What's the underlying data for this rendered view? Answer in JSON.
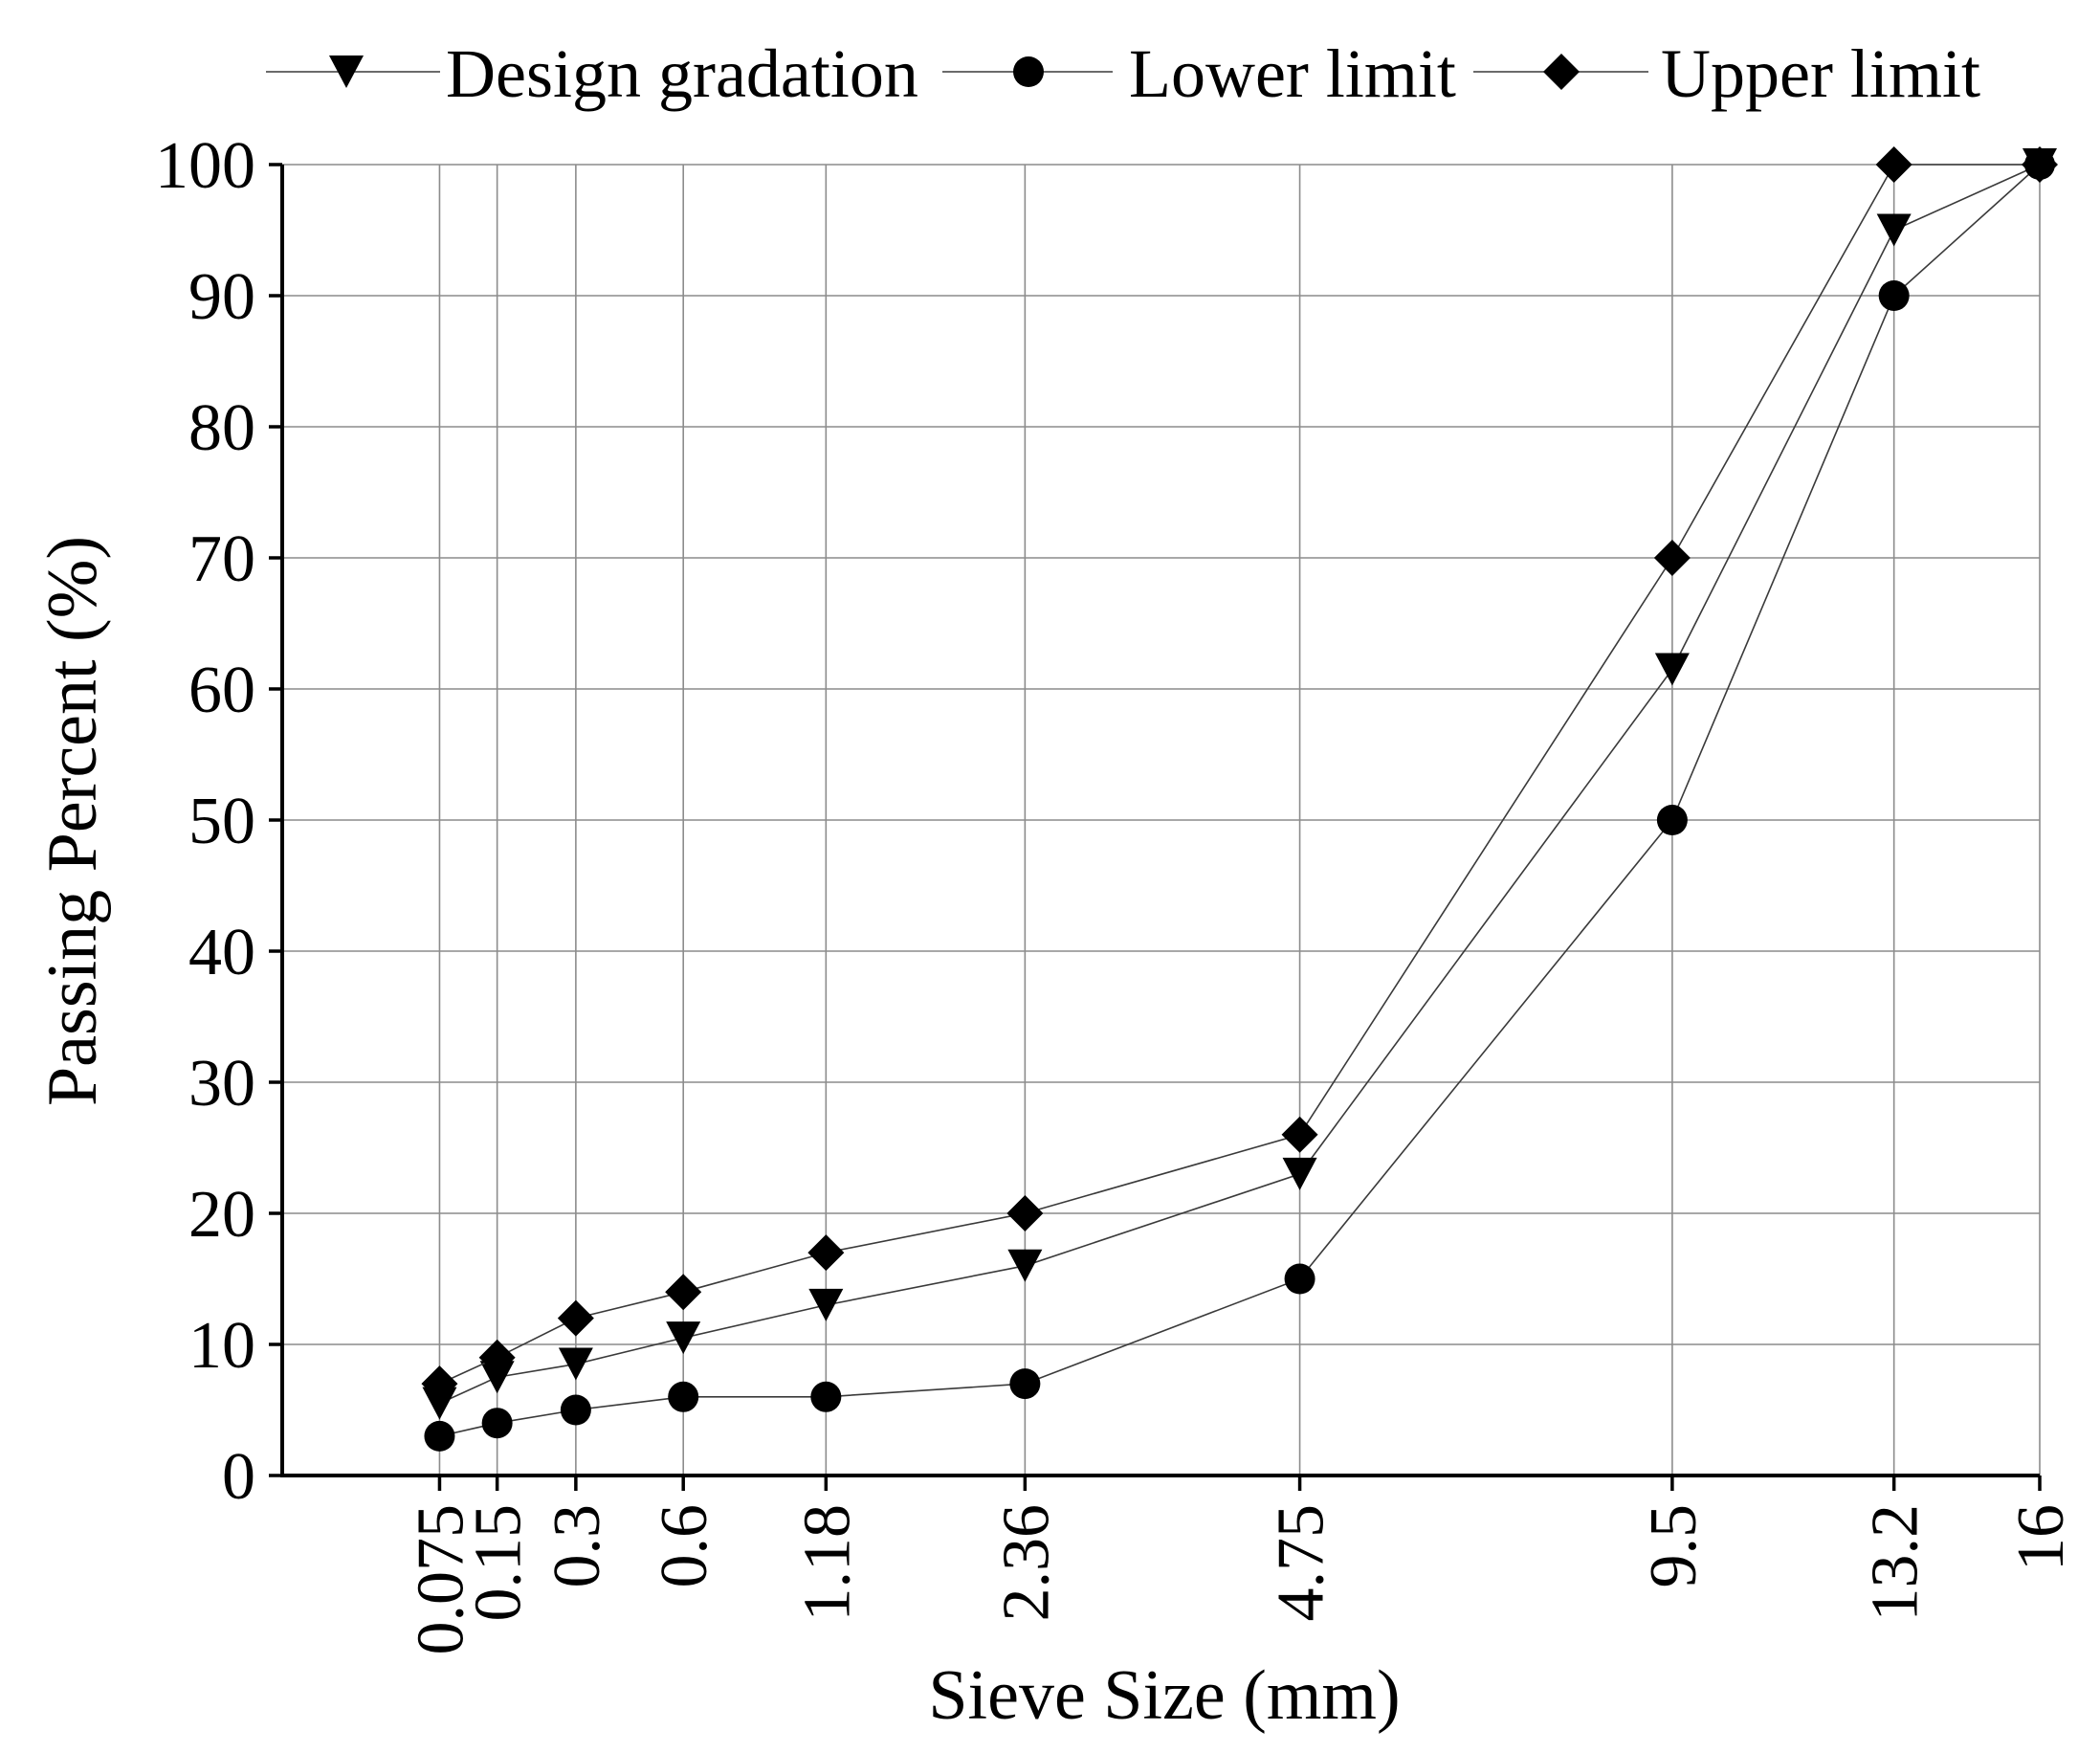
{
  "chart_data": {
    "type": "line",
    "xlabel": "Sieve Size (mm)",
    "ylabel": "Passing Percent (%)",
    "ylim": [
      0,
      100
    ],
    "y_ticks": [
      "0",
      "10",
      "20",
      "30",
      "40",
      "50",
      "60",
      "70",
      "80",
      "90",
      "100"
    ],
    "x_scale": "gradation power 0.45",
    "categories": [
      "0.075",
      "0.15",
      "0.3",
      "0.6",
      "1.18",
      "2.36",
      "4.75",
      "9.5",
      "13.2",
      "16"
    ],
    "x": [
      0.075,
      0.15,
      0.3,
      0.6,
      1.18,
      2.36,
      4.75,
      9.5,
      13.2,
      16
    ],
    "grid": true,
    "legend_position": "top",
    "series": [
      {
        "name": "Design gradation",
        "marker": "triangle-down",
        "values": [
          5.5,
          7.5,
          8.5,
          10.5,
          13,
          16,
          23,
          61.5,
          95,
          100
        ]
      },
      {
        "name": "Lower limit",
        "marker": "circle",
        "values": [
          3,
          4,
          5,
          6,
          6,
          7,
          15,
          50,
          90,
          100
        ]
      },
      {
        "name": "Upper limit",
        "marker": "diamond",
        "values": [
          7,
          9,
          12,
          14,
          17,
          20,
          26,
          70,
          100,
          100
        ]
      }
    ]
  }
}
